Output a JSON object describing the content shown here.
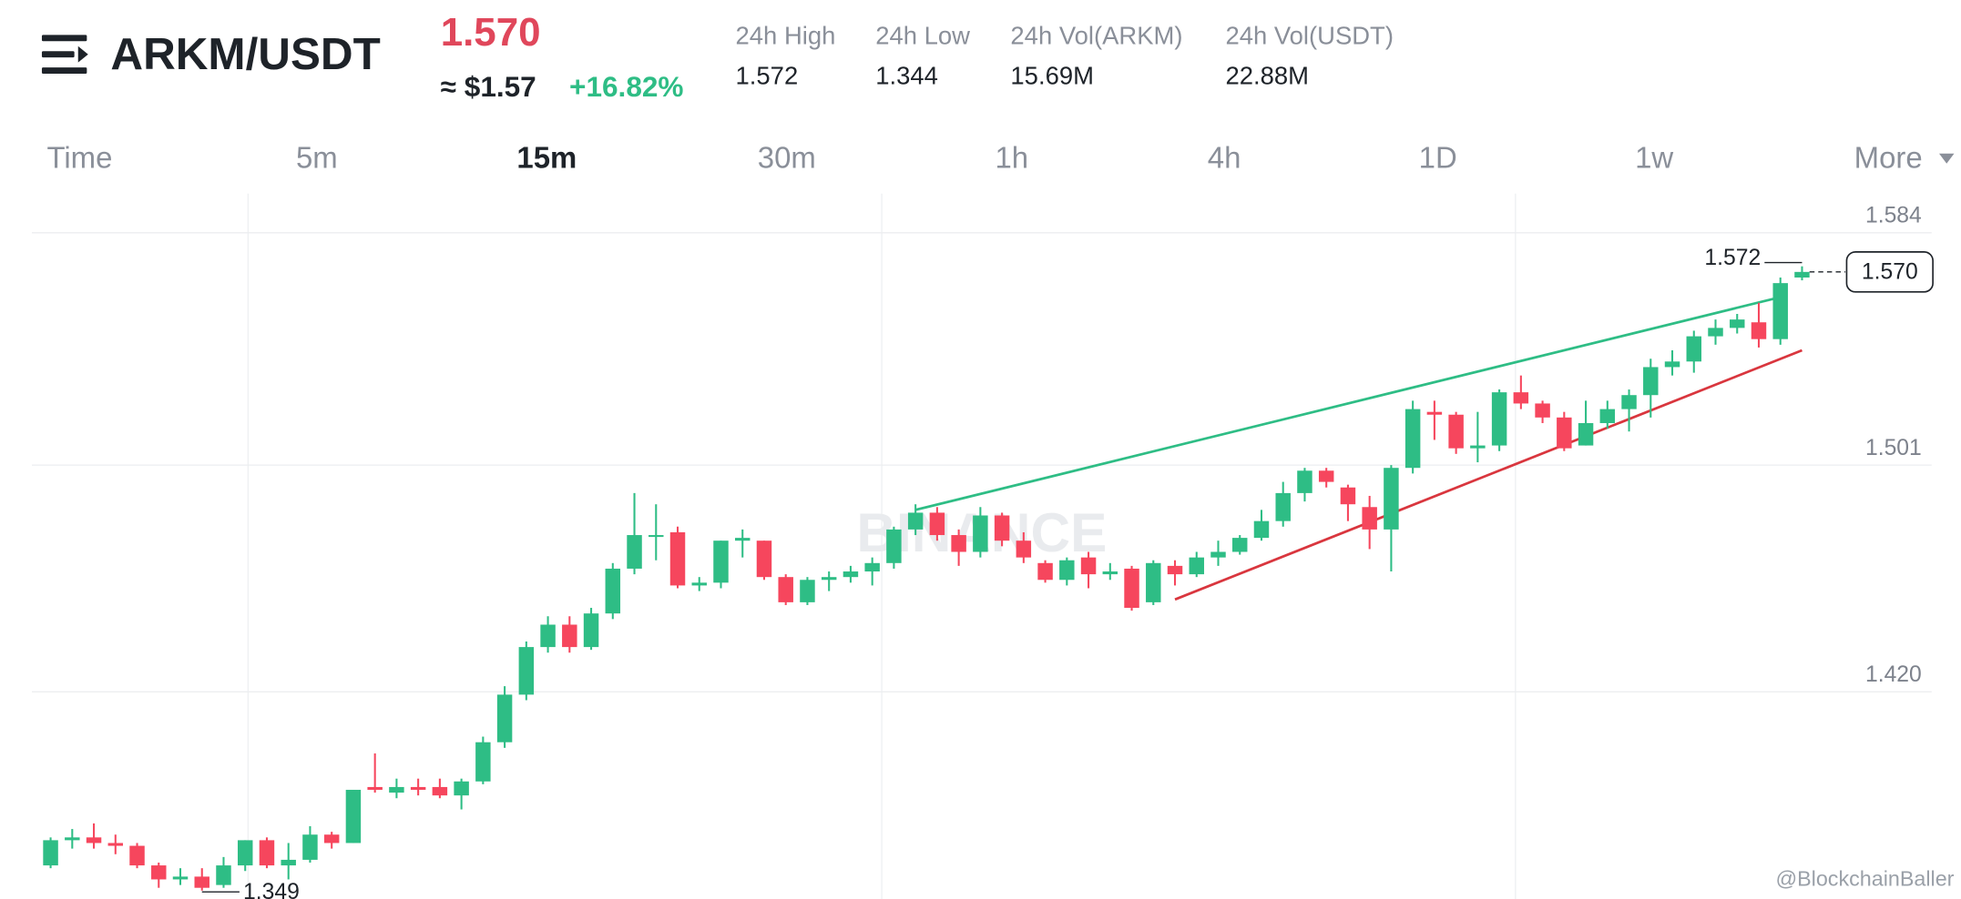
{
  "header": {
    "pair": "ARKM/USDT",
    "price": "1.570",
    "approx": "≈ $1.57",
    "change": "+16.82%",
    "stats": [
      {
        "label": "24h High",
        "value": "1.572"
      },
      {
        "label": "24h Low",
        "value": "1.344"
      },
      {
        "label": "24h Vol(ARKM)",
        "value": "15.69M"
      },
      {
        "label": "24h Vol(USDT)",
        "value": "22.88M"
      }
    ]
  },
  "timeframes": [
    "Time",
    "5m",
    "15m",
    "30m",
    "1h",
    "4h",
    "1D",
    "1w",
    "More"
  ],
  "active_timeframe": "15m",
  "chart_data": {
    "type": "candlestick",
    "up_color": "#2ebd85",
    "down_color": "#f6465d",
    "open": [
      1.358,
      1.367,
      1.368,
      1.366,
      1.365,
      1.358,
      1.353,
      1.354,
      1.351,
      1.358,
      1.367,
      1.358,
      1.36,
      1.369,
      1.366,
      1.386,
      1.384,
      1.386,
      1.386,
      1.383,
      1.388,
      1.402,
      1.419,
      1.436,
      1.444,
      1.436,
      1.448,
      1.464,
      1.476,
      1.477,
      1.458,
      1.459,
      1.474,
      1.474,
      1.461,
      1.452,
      1.46,
      1.461,
      1.463,
      1.466,
      1.478,
      1.484,
      1.476,
      1.47,
      1.483,
      1.474,
      1.466,
      1.46,
      1.468,
      1.462,
      1.464,
      1.452,
      1.465,
      1.462,
      1.468,
      1.47,
      1.475,
      1.481,
      1.491,
      1.499,
      1.493,
      1.486,
      1.478,
      1.5,
      1.52,
      1.519,
      1.507,
      1.508,
      1.527,
      1.523,
      1.518,
      1.508,
      1.516,
      1.521,
      1.526,
      1.536,
      1.538,
      1.547,
      1.55,
      1.552,
      1.546,
      1.568
    ],
    "high": [
      1.368,
      1.371,
      1.373,
      1.369,
      1.366,
      1.359,
      1.357,
      1.357,
      1.361,
      1.367,
      1.368,
      1.366,
      1.372,
      1.37,
      1.385,
      1.398,
      1.389,
      1.389,
      1.389,
      1.389,
      1.404,
      1.422,
      1.438,
      1.447,
      1.447,
      1.45,
      1.466,
      1.491,
      1.487,
      1.479,
      1.461,
      1.474,
      1.478,
      1.474,
      1.462,
      1.461,
      1.463,
      1.465,
      1.468,
      1.479,
      1.487,
      1.486,
      1.478,
      1.486,
      1.484,
      1.477,
      1.467,
      1.468,
      1.47,
      1.466,
      1.465,
      1.467,
      1.467,
      1.47,
      1.474,
      1.476,
      1.485,
      1.495,
      1.5,
      1.5,
      1.494,
      1.49,
      1.501,
      1.524,
      1.524,
      1.52,
      1.52,
      1.528,
      1.533,
      1.524,
      1.52,
      1.524,
      1.524,
      1.528,
      1.539,
      1.542,
      1.549,
      1.553,
      1.555,
      1.559,
      1.568,
      1.572
    ],
    "low": [
      1.357,
      1.364,
      1.364,
      1.362,
      1.357,
      1.35,
      1.351,
      1.349,
      1.35,
      1.356,
      1.357,
      1.353,
      1.359,
      1.364,
      1.366,
      1.384,
      1.382,
      1.383,
      1.382,
      1.378,
      1.387,
      1.4,
      1.417,
      1.434,
      1.434,
      1.435,
      1.446,
      1.462,
      1.467,
      1.457,
      1.456,
      1.457,
      1.468,
      1.46,
      1.451,
      1.451,
      1.456,
      1.459,
      1.458,
      1.464,
      1.476,
      1.474,
      1.465,
      1.468,
      1.472,
      1.466,
      1.459,
      1.458,
      1.457,
      1.46,
      1.449,
      1.451,
      1.458,
      1.461,
      1.465,
      1.469,
      1.474,
      1.479,
      1.488,
      1.493,
      1.481,
      1.471,
      1.463,
      1.498,
      1.51,
      1.505,
      1.502,
      1.506,
      1.521,
      1.516,
      1.506,
      1.508,
      1.514,
      1.513,
      1.518,
      1.533,
      1.534,
      1.544,
      1.548,
      1.543,
      1.544,
      1.567
    ],
    "close": [
      1.367,
      1.368,
      1.366,
      1.365,
      1.358,
      1.353,
      1.354,
      1.35,
      1.358,
      1.367,
      1.358,
      1.36,
      1.369,
      1.366,
      1.385,
      1.385,
      1.386,
      1.385,
      1.383,
      1.388,
      1.402,
      1.419,
      1.436,
      1.444,
      1.436,
      1.448,
      1.464,
      1.476,
      1.476,
      1.458,
      1.459,
      1.474,
      1.475,
      1.461,
      1.452,
      1.46,
      1.461,
      1.463,
      1.466,
      1.478,
      1.484,
      1.476,
      1.47,
      1.483,
      1.474,
      1.468,
      1.46,
      1.467,
      1.462,
      1.463,
      1.45,
      1.466,
      1.462,
      1.468,
      1.47,
      1.475,
      1.481,
      1.491,
      1.499,
      1.495,
      1.487,
      1.478,
      1.5,
      1.521,
      1.519,
      1.507,
      1.508,
      1.527,
      1.523,
      1.518,
      1.507,
      1.516,
      1.521,
      1.526,
      1.536,
      1.538,
      1.547,
      1.55,
      1.553,
      1.546,
      1.566,
      1.57
    ],
    "ylim": [
      1.346,
      1.598
    ],
    "yticks": [
      1.584,
      1.501,
      {
        "value": 1.42,
        "label": "1.420"
      }
    ],
    "grid": true,
    "high_marker": 1.572,
    "low_marker": 1.349,
    "last_price": {
      "value": 1.57,
      "label": "1.570"
    },
    "trendlines": [
      {
        "color": "#2ebd85",
        "x": [
          40,
          80
        ],
        "values": [
          1.485,
          1.561
        ]
      },
      {
        "color": "#d9363e",
        "x": [
          52,
          81
        ],
        "values": [
          1.453,
          1.542
        ]
      }
    ],
    "watermark": "BINANCE",
    "credit": "@BlockchainBaller"
  }
}
